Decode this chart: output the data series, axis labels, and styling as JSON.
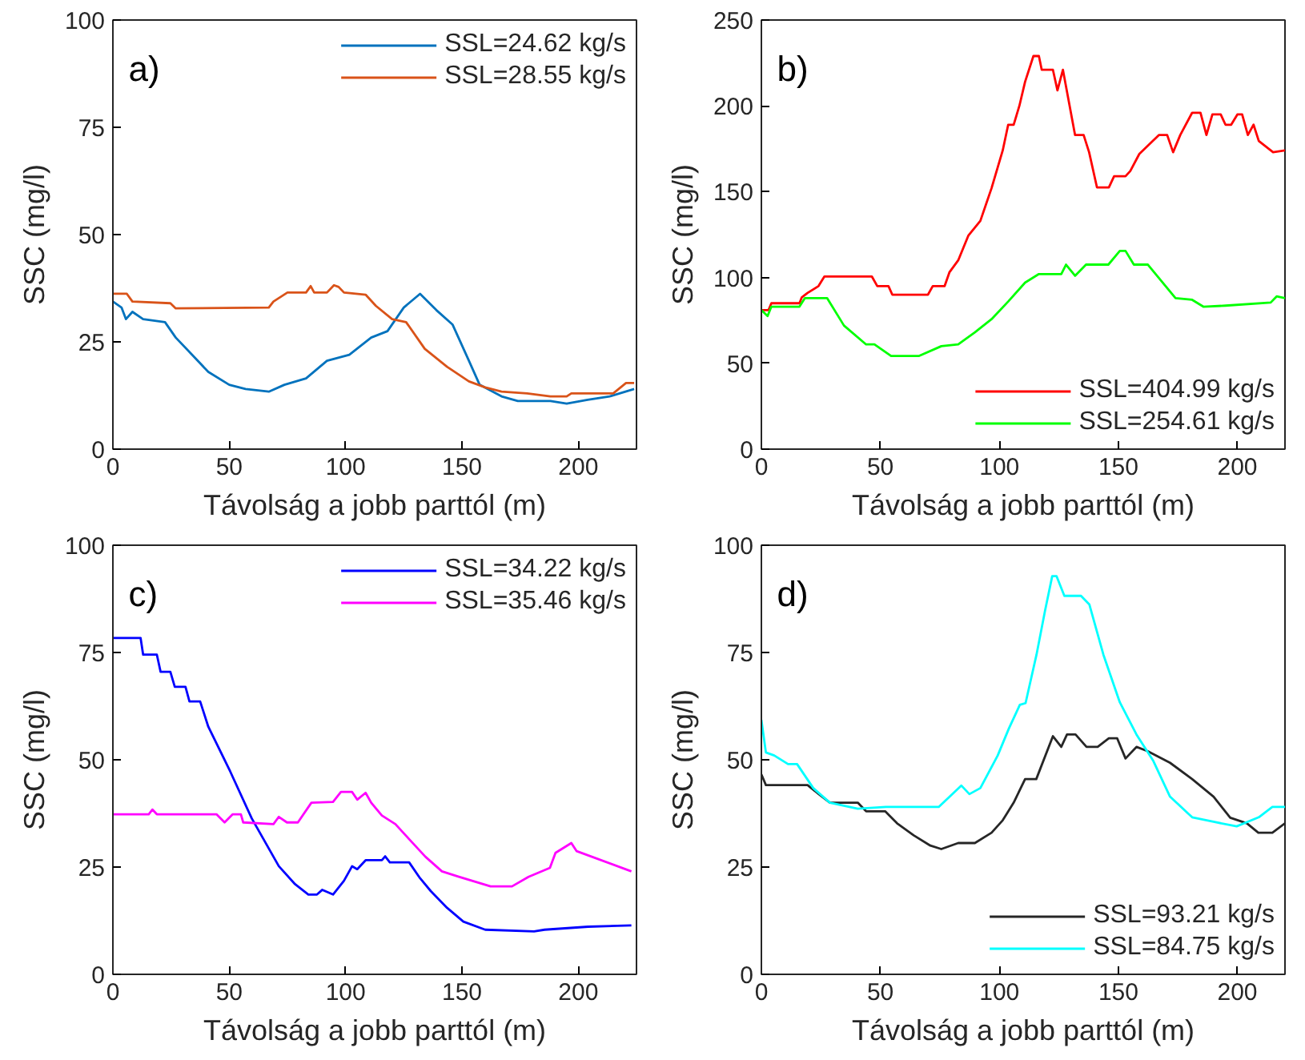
{
  "chart_data": [
    {
      "type": "line",
      "annotations": [
        "a)"
      ],
      "xlabel": "Távolság a jobb parttól (m)",
      "ylabel": "SSC (mg/l)",
      "xlim": [
        0,
        225
      ],
      "ylim": [
        0,
        100
      ],
      "xticks": [
        0,
        50,
        100,
        150,
        200
      ],
      "yticks": [
        0,
        25,
        50,
        75,
        100
      ],
      "grid": false,
      "legend": "top right",
      "line_style": "solid",
      "marker": "none",
      "series": [
        {
          "name": "SSL=24.62 kg/s",
          "color": "#0072bd",
          "x": [
            0,
            3.7,
            5.6,
            8.4,
            13,
            22.4,
            27,
            34,
            41,
            50,
            57,
            67,
            73.7,
            83,
            92,
            101.6,
            111,
            118,
            125,
            132,
            139,
            146,
            153,
            157.6,
            167,
            174,
            188,
            195,
            204,
            213.5,
            224
          ],
          "values": [
            34.4,
            33,
            30.3,
            32,
            30.3,
            29.6,
            26,
            22,
            18,
            15,
            14,
            13.4,
            15,
            16.5,
            20.6,
            22,
            26,
            27.5,
            33,
            36.2,
            32.4,
            29,
            20.6,
            15,
            12.3,
            11.2,
            11.2,
            10.6,
            11.5,
            12.3,
            14
          ]
        },
        {
          "name": "SSL=28.55 kg/s",
          "color": "#d95319",
          "x": [
            0,
            6,
            8.4,
            24.7,
            27,
            67,
            69,
            75,
            83,
            85,
            86.5,
            92,
            95,
            97,
            99.3,
            108.6,
            113,
            120,
            126,
            134,
            143.6,
            153,
            160,
            167,
            178,
            188,
            195,
            197,
            215,
            220.5,
            224
          ],
          "values": [
            36.2,
            36.2,
            34.4,
            34,
            32.8,
            33,
            34.4,
            36.5,
            36.5,
            38,
            36.5,
            36.5,
            38.2,
            37.8,
            36.5,
            36,
            33.4,
            30.3,
            29.6,
            23.4,
            19.2,
            15.8,
            14.4,
            13.4,
            13,
            12.3,
            12.3,
            13,
            13,
            15.4,
            15.4
          ]
        }
      ]
    },
    {
      "type": "line",
      "annotations": [
        "b)"
      ],
      "xlabel": "Távolság a jobb parttól (m)",
      "ylabel": "SSC (mg/l)",
      "xlim": [
        0,
        220
      ],
      "ylim": [
        0,
        250
      ],
      "xticks": [
        0,
        50,
        100,
        150,
        200
      ],
      "yticks": [
        0,
        50,
        100,
        150,
        200,
        250
      ],
      "grid": false,
      "legend": "bottom right",
      "line_style": "solid",
      "marker": "none",
      "series": [
        {
          "name": "SSL=404.99 kg/s",
          "color": "#ff0000",
          "x": [
            0,
            3,
            4.2,
            16,
            17,
            19.4,
            24,
            26.5,
            46.4,
            48.7,
            53.4,
            55,
            70,
            72,
            77,
            79,
            82.7,
            87,
            92,
            96.7,
            101.4,
            103.7,
            106,
            108.4,
            110.8,
            114.3,
            116.6,
            117.8,
            122.5,
            124.4,
            126.7,
            131.8,
            135.4,
            137.7,
            141,
            146,
            148.2,
            153,
            155,
            158.8,
            167,
            170.5,
            173,
            176,
            181,
            184.5,
            187,
            189.5,
            193,
            195,
            197.4,
            200,
            202,
            204.4,
            206.8,
            209,
            215,
            220
          ],
          "values": [
            81,
            81,
            85,
            85,
            88.5,
            91,
            95,
            100.6,
            100.6,
            95,
            95,
            90,
            90,
            95,
            95,
            103,
            110,
            124.5,
            133,
            152,
            174,
            189,
            189,
            200,
            214,
            229,
            229,
            221,
            221,
            209,
            221,
            183,
            183,
            173,
            152.5,
            152.5,
            159,
            159,
            162,
            172,
            183,
            183,
            173,
            183,
            196,
            196,
            183,
            195,
            195,
            189,
            189,
            195,
            195,
            183,
            189,
            179.5,
            173,
            174
          ]
        },
        {
          "name": "SSL=254.61 kg/s",
          "color": "#00ff00",
          "x": [
            0,
            2.6,
            4.2,
            16,
            18.3,
            27.6,
            34.7,
            44,
            47.5,
            54.5,
            66.3,
            75.6,
            82.7,
            89.7,
            96.7,
            103.7,
            110.8,
            116.6,
            126,
            128,
            131.8,
            136.4,
            145.8,
            150.6,
            153,
            156.5,
            162.4,
            174,
            181,
            185.7,
            195,
            214,
            216.5,
            220
          ],
          "values": [
            81,
            77.5,
            83,
            83,
            88,
            88,
            72,
            61,
            61,
            54.3,
            54.3,
            60,
            61,
            68,
            75.7,
            86,
            97,
            102,
            102,
            107.5,
            101,
            107.5,
            107.5,
            115.5,
            115.5,
            107.5,
            107.5,
            88,
            87,
            83,
            83.6,
            85.4,
            89,
            88
          ]
        }
      ]
    },
    {
      "type": "line",
      "annotations": [
        "c)"
      ],
      "xlabel": "Távolság a jobb parttól (m)",
      "ylabel": "SSC (mg/l)",
      "xlim": [
        0,
        225
      ],
      "ylim": [
        0,
        100
      ],
      "xticks": [
        0,
        50,
        100,
        150,
        200
      ],
      "yticks": [
        0,
        25,
        50,
        75,
        100
      ],
      "grid": false,
      "legend": "top right",
      "line_style": "solid",
      "marker": "none",
      "series": [
        {
          "name": "SSL=34.22 kg/s",
          "color": "#0000ff",
          "x": [
            0,
            11.9,
            13,
            18.9,
            20.5,
            24.7,
            26.6,
            31.2,
            32.9,
            37.5,
            41,
            50.4,
            59.7,
            71.3,
            78.3,
            84,
            87.7,
            90,
            94.6,
            99.3,
            102.8,
            105,
            108.6,
            115.6,
            117,
            119,
            127.3,
            132,
            136.6,
            143.6,
            150.6,
            160,
            181,
            185.5,
            204.2,
            222.8
          ],
          "values": [
            78.4,
            78.4,
            74.5,
            74.5,
            70.5,
            70.5,
            67,
            67,
            63.6,
            63.6,
            57.7,
            47.3,
            36.3,
            25.2,
            21,
            18.6,
            18.6,
            19.7,
            18.6,
            21.8,
            25.2,
            24.5,
            26.6,
            26.6,
            27.5,
            26.1,
            26.1,
            22.4,
            19.4,
            15.5,
            12.3,
            10.4,
            10,
            10.4,
            11.1,
            11.4
          ]
        },
        {
          "name": "SSL=35.46 kg/s",
          "color": "#ff00ff",
          "x": [
            0,
            15.4,
            17,
            18.9,
            44.5,
            48,
            51.5,
            55,
            56,
            69,
            71.3,
            74.8,
            79.5,
            85.3,
            94.6,
            98,
            102.8,
            105,
            108.6,
            111,
            115.6,
            121.4,
            127.3,
            134.3,
            141.4,
            148.4,
            162.3,
            171.5,
            178.6,
            187.8,
            190.2,
            197,
            199.3,
            222.8
          ],
          "values": [
            37.3,
            37.3,
            38.4,
            37.3,
            37.3,
            35.4,
            37.3,
            37.3,
            35.4,
            35,
            36.7,
            35.4,
            35.4,
            40,
            40.2,
            42.5,
            42.5,
            40.7,
            42.3,
            40,
            37,
            35,
            31.5,
            27.4,
            24,
            22.8,
            20.5,
            20.5,
            22.7,
            24.8,
            28.3,
            30.6,
            28.7,
            24
          ]
        }
      ]
    },
    {
      "type": "line",
      "annotations": [
        "d)"
      ],
      "xlabel": "Távolság a jobb parttól (m)",
      "ylabel": "SSC (mg/l)",
      "xlim": [
        0,
        220
      ],
      "ylim": [
        0,
        100
      ],
      "xticks": [
        0,
        50,
        100,
        150,
        200
      ],
      "yticks": [
        0,
        25,
        50,
        75,
        100
      ],
      "grid": false,
      "legend": "bottom right",
      "line_style": "solid",
      "marker": "none",
      "series": [
        {
          "name": "SSL=93.21 kg/s",
          "color": "#262626",
          "x": [
            0,
            1.9,
            19.4,
            24.1,
            28.8,
            40.5,
            44,
            52,
            57,
            64,
            71,
            75.6,
            82.7,
            89.7,
            96.7,
            101.4,
            106,
            110.8,
            115.5,
            122.5,
            126,
            128.4,
            132,
            136.6,
            141.3,
            146,
            149.5,
            153,
            157.6,
            162.3,
            171.7,
            181,
            190,
            197,
            204,
            208.8,
            214.7,
            220
          ],
          "values": [
            46.6,
            44.1,
            44.1,
            42,
            40,
            40,
            38,
            38,
            35.2,
            32.4,
            30,
            29.2,
            30.6,
            30.6,
            33,
            35.9,
            40,
            45.5,
            45.5,
            55.5,
            53,
            55.9,
            55.9,
            53,
            53,
            55,
            55,
            50.3,
            53,
            52,
            49.3,
            45.5,
            41.4,
            36.5,
            35.2,
            33,
            33,
            35.2
          ]
        },
        {
          "name": "SSL=84.75 kg/s",
          "color": "#00ffff",
          "x": [
            0,
            1.9,
            5.4,
            11.2,
            15,
            21.8,
            28.8,
            40.5,
            52.3,
            74.5,
            84,
            87.4,
            92,
            99.3,
            104,
            108.6,
            111,
            115.6,
            119.2,
            122.2,
            124,
            127.3,
            134.3,
            137.8,
            143.7,
            150.6,
            157.6,
            164.7,
            171.7,
            181,
            190.4,
            199.7,
            209,
            214.7,
            220
          ],
          "values": [
            59.3,
            51.7,
            51,
            49,
            49,
            43.4,
            40,
            38.6,
            39,
            39,
            44,
            42,
            43.4,
            51,
            57.3,
            62.8,
            63.2,
            74.5,
            84.8,
            92.8,
            92.8,
            88.2,
            88.2,
            86.2,
            74.5,
            63.4,
            55.9,
            49.7,
            41.4,
            36.6,
            35.5,
            34.5,
            36.6,
            39,
            39
          ]
        }
      ]
    }
  ]
}
